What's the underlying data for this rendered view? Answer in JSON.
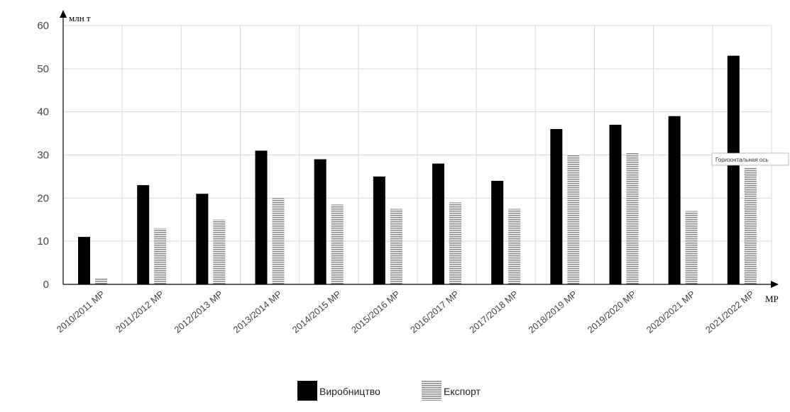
{
  "chart_data": {
    "type": "bar",
    "ylabel": "млн т",
    "xlabel": "МР",
    "ylim": [
      0,
      60
    ],
    "yticks": [
      0,
      10,
      20,
      30,
      40,
      50,
      60
    ],
    "grid": true,
    "legend_position": "bottom",
    "categories": [
      "2010/2011 МР",
      "2011/2012 МР",
      "2012/2013 МР",
      "2013/2014 МР",
      "2014/2015 МР",
      "2015/2016 МР",
      "2016/2017 МР",
      "2017/2018 МР",
      "2018/2019 МР",
      "2019/2020 МР",
      "2020/2021 МР",
      "2021/2022 МР"
    ],
    "series": [
      {
        "name": "Виробництво",
        "color": "#000000",
        "values": [
          11,
          23,
          21,
          31,
          29,
          25,
          28,
          24,
          36,
          37,
          39,
          53
        ]
      },
      {
        "name": "Експорт",
        "color": "#9a9a9a",
        "pattern": "horizontal-stripes",
        "values": [
          1.5,
          13,
          15,
          20,
          18.5,
          17.5,
          19,
          17.5,
          30,
          30.5,
          17,
          27
        ]
      }
    ],
    "tooltip": "Горизонтальная ось"
  }
}
